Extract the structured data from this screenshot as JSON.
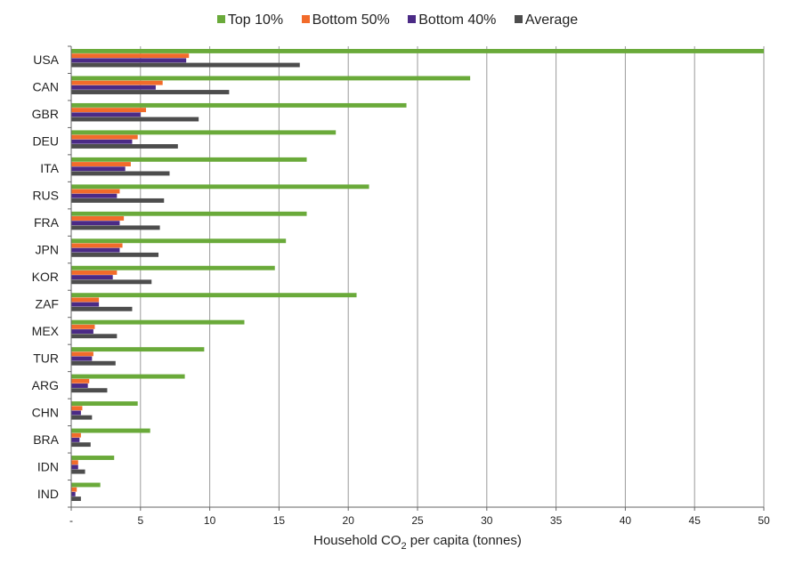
{
  "chart_data": {
    "type": "bar",
    "orientation": "horizontal",
    "xlabel_parts": [
      "Household CO",
      "2",
      " per capita (tonnes)"
    ],
    "xlim": [
      0,
      50
    ],
    "xticks": [
      "-",
      "5",
      "10",
      "15",
      "20",
      "25",
      "30",
      "35",
      "40",
      "45",
      "50"
    ],
    "grid": "vertical",
    "legend_position": "top",
    "categories": [
      "USA",
      "CAN",
      "GBR",
      "DEU",
      "ITA",
      "RUS",
      "FRA",
      "JPN",
      "KOR",
      "ZAF",
      "MEX",
      "TUR",
      "ARG",
      "CHN",
      "BRA",
      "IDN",
      "IND"
    ],
    "series": [
      {
        "name": "Top 10%",
        "color": "#6aaa3a",
        "values": [
          50.0,
          28.8,
          24.2,
          19.1,
          17.0,
          21.5,
          17.0,
          15.5,
          14.7,
          20.6,
          12.5,
          9.6,
          8.2,
          4.8,
          5.7,
          3.1,
          2.1
        ]
      },
      {
        "name": "Bottom 50%",
        "color": "#f26b2a",
        "values": [
          8.5,
          6.6,
          5.4,
          4.8,
          4.3,
          3.5,
          3.8,
          3.7,
          3.3,
          2.0,
          1.7,
          1.6,
          1.3,
          0.8,
          0.7,
          0.5,
          0.4
        ]
      },
      {
        "name": "Bottom 40%",
        "color": "#4b2a86",
        "values": [
          8.3,
          6.1,
          5.0,
          4.4,
          3.9,
          3.3,
          3.5,
          3.5,
          3.0,
          2.0,
          1.6,
          1.5,
          1.2,
          0.7,
          0.6,
          0.5,
          0.3
        ]
      },
      {
        "name": "Average",
        "color": "#4d4d4d",
        "values": [
          16.5,
          11.4,
          9.2,
          7.7,
          7.1,
          6.7,
          6.4,
          6.3,
          5.8,
          4.4,
          3.3,
          3.2,
          2.6,
          1.5,
          1.4,
          1.0,
          0.7
        ]
      }
    ]
  }
}
